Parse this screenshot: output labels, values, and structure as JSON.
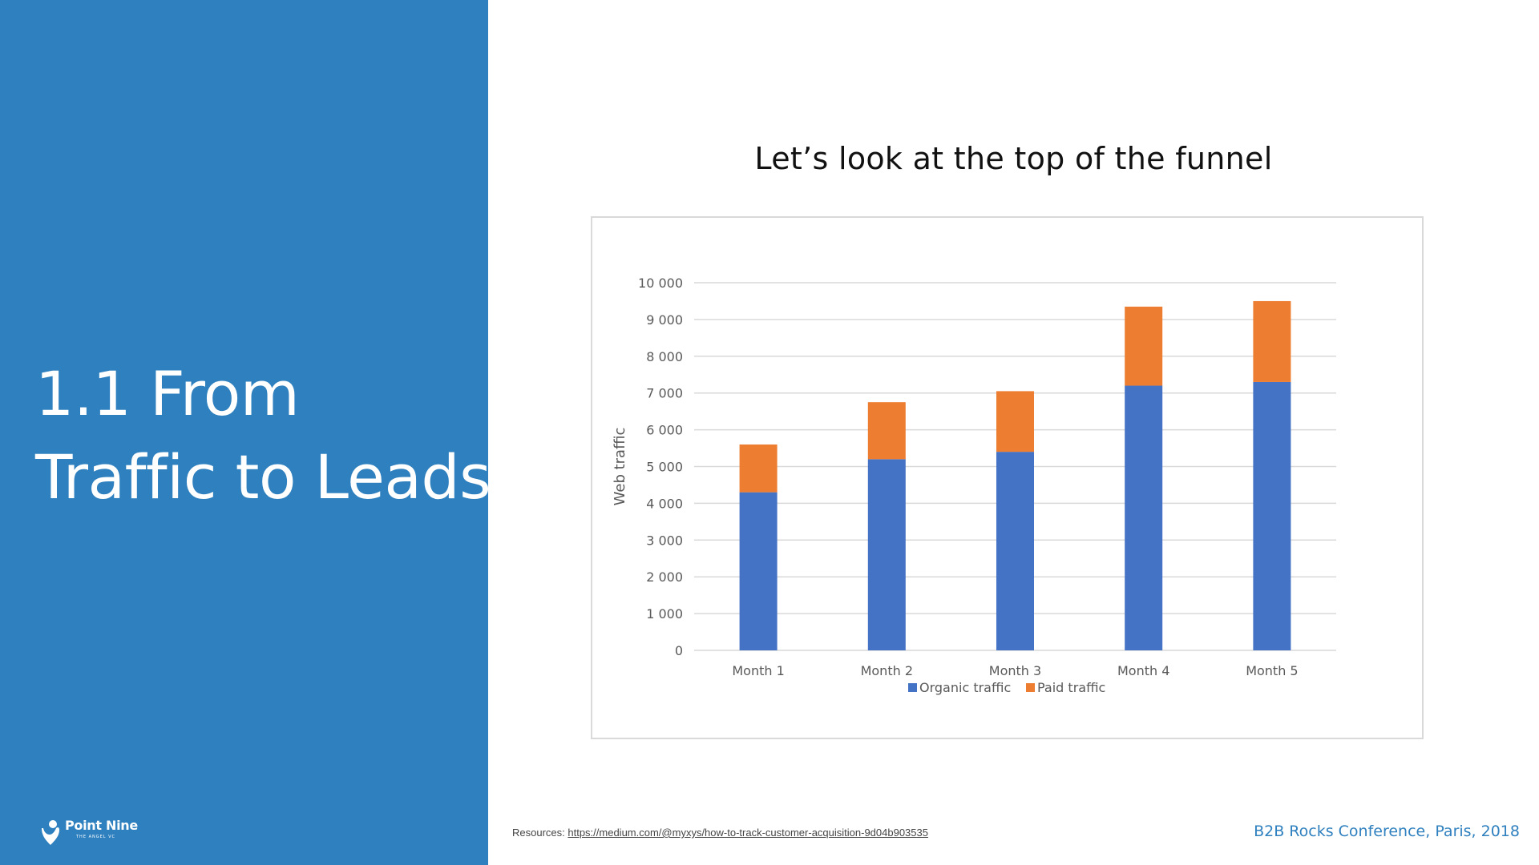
{
  "section": {
    "title_line1": "1.1 From",
    "title_line2": "Traffic to Leads"
  },
  "logo": {
    "name": "Point Nine",
    "tagline": "THE ANGEL VC"
  },
  "slide": {
    "heading": "Let’s look at the top of the funnel"
  },
  "footer": {
    "resources_label": "Resources:",
    "resources_link": "https://medium.com/@myxys/how-to-track-customer-acquisition-9d04b903535",
    "conference": "B2B Rocks Conference, Paris, 2018"
  },
  "colors": {
    "panel": "#2f80bf",
    "organic": "#4472c4",
    "paid": "#ed7d31"
  },
  "chart_data": {
    "type": "bar",
    "stacked": true,
    "categories": [
      "Month 1",
      "Month 2",
      "Month 3",
      "Month 4",
      "Month 5"
    ],
    "series": [
      {
        "name": "Organic traffic",
        "color": "#4472c4",
        "values": [
          4300,
          5200,
          5400,
          7200,
          7300
        ]
      },
      {
        "name": "Paid traffic",
        "color": "#ed7d31",
        "values": [
          1300,
          1550,
          1650,
          2150,
          2200
        ]
      }
    ],
    "title": "",
    "xlabel": "",
    "ylabel": "Web traffic",
    "ylim": [
      0,
      10000
    ],
    "yticks": [
      0,
      1000,
      2000,
      3000,
      4000,
      5000,
      6000,
      7000,
      8000,
      9000,
      10000
    ],
    "ytick_labels": [
      "0",
      "1 000",
      "2 000",
      "3 000",
      "4 000",
      "5 000",
      "6 000",
      "7 000",
      "8 000",
      "9 000",
      "10 000"
    ],
    "grid": true,
    "legend": "bottom"
  }
}
